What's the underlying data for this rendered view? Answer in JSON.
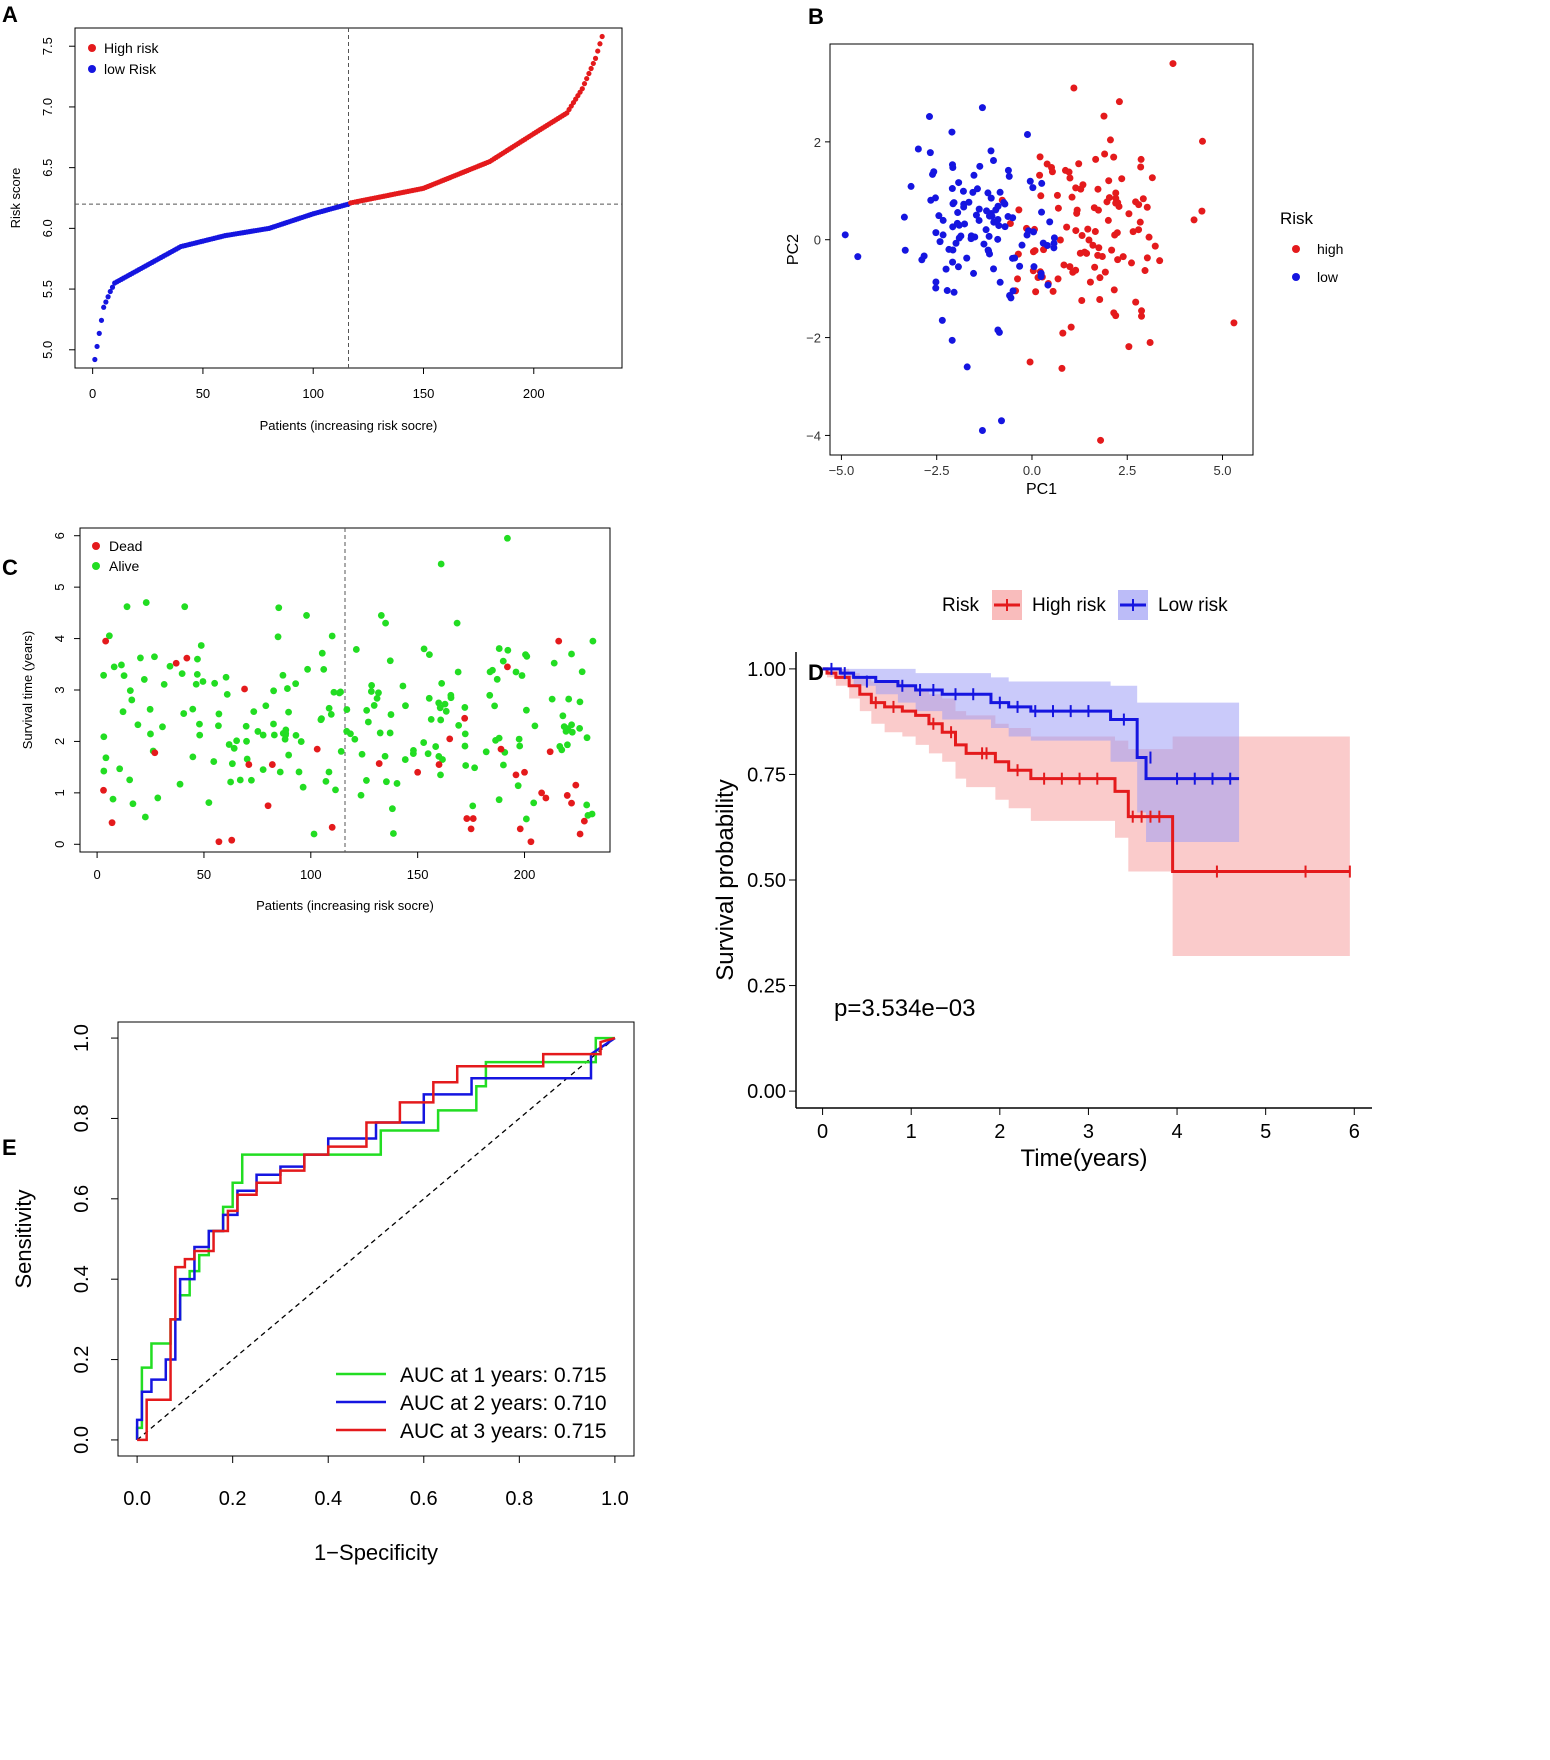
{
  "panel_labels": {
    "a": "A",
    "b": "B",
    "c": "C",
    "d": "D",
    "e": "E"
  },
  "colors": {
    "red": "#e41a1c",
    "blue": "#1515e0",
    "green": "#22dd22",
    "black": "#000000"
  },
  "chart_data": [
    {
      "id": "A",
      "type": "scatter",
      "title": "",
      "xlabel": "Patients (increasing risk socre)",
      "ylabel": "Risk score",
      "xlim": [
        -8,
        240
      ],
      "ylim": [
        4.85,
        7.65
      ],
      "xticks": [
        0,
        50,
        100,
        150,
        200
      ],
      "yticks": [
        5.0,
        5.5,
        6.0,
        6.5,
        7.0,
        7.5
      ],
      "n_patients": 231,
      "cutoff_index": 116,
      "cutoff_score": 6.2,
      "legend": [
        "High risk",
        "low Risk"
      ],
      "legend_position": "top-left",
      "series": [
        {
          "name": "low Risk",
          "color": "#1515e0",
          "profile": {
            "x": [
              1,
              5,
              8,
              10,
              20,
              40,
              60,
              80,
              100,
              116
            ],
            "y": [
              4.92,
              5.35,
              5.48,
              5.55,
              5.65,
              5.85,
              5.94,
              6.0,
              6.12,
              6.2
            ]
          }
        },
        {
          "name": "High risk",
          "color": "#e41a1c",
          "profile": {
            "x": [
              117,
              150,
              180,
              200,
              215,
              222,
              228,
              231
            ],
            "y": [
              6.21,
              6.33,
              6.55,
              6.78,
              6.95,
              7.15,
              7.4,
              7.58
            ]
          }
        }
      ]
    },
    {
      "id": "B",
      "type": "scatter",
      "xlabel": "PC1",
      "ylabel": "PC2",
      "xlim": [
        -5.3,
        5.8
      ],
      "ylim": [
        -4.4,
        4.0
      ],
      "xticks": [
        -5.0,
        -2.5,
        0.0,
        2.5,
        5.0
      ],
      "xtick_labels": [
        "−5.0",
        "−2.5",
        "0.0",
        "2.5",
        "5.0"
      ],
      "yticks": [
        -4,
        -2,
        0,
        2
      ],
      "ytick_labels": [
        "−4",
        "−2",
        "0",
        "2"
      ],
      "legend_title": "Risk",
      "legend": [
        "high",
        "low"
      ],
      "legend_position": "right",
      "series": [
        {
          "name": "high",
          "color": "#e41a1c",
          "center": [
            1.6,
            0.0
          ],
          "spread": [
            1.1,
            0.95
          ],
          "n": 115,
          "outliers": [
            [
              3.7,
              3.6
            ],
            [
              1.1,
              3.1
            ],
            [
              1.8,
              -4.1
            ],
            [
              5.3,
              -1.7
            ],
            [
              3.1,
              -2.1
            ],
            [
              -0.05,
              -2.5
            ]
          ]
        },
        {
          "name": "low",
          "color": "#1515e0",
          "center": [
            -1.4,
            0.2
          ],
          "spread": [
            0.9,
            0.9
          ],
          "n": 116,
          "outliers": [
            [
              -4.9,
              0.1
            ],
            [
              -1.3,
              -3.9
            ],
            [
              -0.8,
              -3.7
            ],
            [
              -1.7,
              -2.6
            ],
            [
              -1.3,
              2.7
            ],
            [
              -2.1,
              2.2
            ]
          ]
        }
      ]
    },
    {
      "id": "C",
      "type": "scatter",
      "xlabel": "Patients (increasing risk socre)",
      "ylabel": "Survival time (years)",
      "xlim": [
        -8,
        240
      ],
      "ylim": [
        -0.15,
        6.15
      ],
      "xticks": [
        0,
        50,
        100,
        150,
        200
      ],
      "yticks": [
        0,
        1,
        2,
        3,
        4,
        5,
        6
      ],
      "cutoff_index": 116,
      "legend": [
        "Dead",
        "Alive"
      ],
      "legend_position": "top-left",
      "series": [
        {
          "name": "Dead",
          "color": "#e41a1c",
          "points": [
            [
              3,
              1.05
            ],
            [
              4,
              3.95
            ],
            [
              7,
              0.42
            ],
            [
              27,
              1.78
            ],
            [
              37,
              3.52
            ],
            [
              42,
              3.62
            ],
            [
              57,
              0.05
            ],
            [
              63,
              0.08
            ],
            [
              69,
              3.02
            ],
            [
              71,
              1.55
            ],
            [
              80,
              0.75
            ],
            [
              82,
              1.55
            ],
            [
              103,
              1.85
            ],
            [
              110,
              0.33
            ],
            [
              132,
              1.57
            ],
            [
              150,
              1.4
            ],
            [
              160,
              1.55
            ],
            [
              165,
              2.05
            ],
            [
              172,
              2.45
            ],
            [
              173,
              0.5
            ],
            [
              175,
              0.3
            ],
            [
              176,
              0.5
            ],
            [
              189,
              1.85
            ],
            [
              192,
              3.45
            ],
            [
              196,
              1.35
            ],
            [
              198,
              0.3
            ],
            [
              200,
              1.4
            ],
            [
              203,
              0.05
            ],
            [
              208,
              1.0
            ],
            [
              210,
              0.9
            ],
            [
              212,
              1.8
            ],
            [
              216,
              3.95
            ],
            [
              220,
              0.95
            ],
            [
              222,
              0.8
            ],
            [
              224,
              1.15
            ],
            [
              226,
              0.2
            ],
            [
              228,
              0.45
            ]
          ]
        },
        {
          "name": "Alive",
          "color": "#22dd22",
          "n": 194,
          "extra_points": [
            [
              192,
              5.95
            ],
            [
              161,
              5.45
            ],
            [
              23,
              4.7
            ],
            [
              14,
              4.62
            ],
            [
              41,
              4.62
            ],
            [
              85,
              4.6
            ],
            [
              98,
              4.45
            ],
            [
              133,
              4.45
            ],
            [
              110,
              4.05
            ],
            [
              232,
              3.95
            ],
            [
              153,
              3.8
            ],
            [
              222,
              3.7
            ],
            [
              8,
              3.45
            ]
          ]
        }
      ]
    },
    {
      "id": "D",
      "type": "line",
      "title": "",
      "xlabel": "Time(years)",
      "ylabel": "Survival probability",
      "xlim": [
        -0.3,
        6.2
      ],
      "ylim": [
        -0.04,
        1.04
      ],
      "xticks": [
        0,
        1,
        2,
        3,
        4,
        5,
        6
      ],
      "yticks": [
        0.0,
        0.25,
        0.5,
        0.75,
        1.0
      ],
      "ytick_labels": [
        "0.00",
        "0.25",
        "0.50",
        "0.75",
        "1.00"
      ],
      "legend_title": "Risk",
      "legend": [
        "High risk",
        "Low risk"
      ],
      "legend_position": "top",
      "annotation": "p=3.534e−03",
      "series": [
        {
          "name": "High risk",
          "color": "#e41a1c",
          "band_color": "#f6a0a0",
          "x": [
            0,
            0.05,
            0.15,
            0.3,
            0.42,
            0.55,
            0.7,
            0.9,
            1.05,
            1.2,
            1.35,
            1.5,
            1.62,
            1.95,
            2.1,
            2.35,
            3.3,
            3.45,
            3.95,
            5.95
          ],
          "y": [
            1.0,
            0.99,
            0.98,
            0.96,
            0.94,
            0.92,
            0.91,
            0.9,
            0.89,
            0.87,
            0.85,
            0.82,
            0.8,
            0.78,
            0.76,
            0.74,
            0.71,
            0.65,
            0.52,
            0.52
          ],
          "lower": [
            1.0,
            0.98,
            0.96,
            0.93,
            0.9,
            0.87,
            0.85,
            0.84,
            0.82,
            0.8,
            0.78,
            0.74,
            0.72,
            0.69,
            0.67,
            0.64,
            0.6,
            0.52,
            0.32,
            0.32
          ],
          "upper": [
            1.0,
            1.0,
            1.0,
            0.99,
            0.98,
            0.97,
            0.97,
            0.96,
            0.95,
            0.94,
            0.93,
            0.9,
            0.89,
            0.87,
            0.86,
            0.84,
            0.83,
            0.81,
            0.84,
            0.84
          ],
          "censor": [
            [
              0.6,
              0.92
            ],
            [
              0.8,
              0.91
            ],
            [
              1.25,
              0.87
            ],
            [
              1.45,
              0.85
            ],
            [
              1.8,
              0.8
            ],
            [
              1.85,
              0.8
            ],
            [
              2.2,
              0.76
            ],
            [
              2.5,
              0.74
            ],
            [
              2.7,
              0.74
            ],
            [
              2.9,
              0.74
            ],
            [
              3.1,
              0.74
            ],
            [
              3.5,
              0.65
            ],
            [
              3.6,
              0.65
            ],
            [
              3.7,
              0.65
            ],
            [
              3.8,
              0.65
            ],
            [
              4.45,
              0.52
            ],
            [
              5.45,
              0.52
            ],
            [
              5.95,
              0.52
            ]
          ]
        },
        {
          "name": "Low risk",
          "color": "#1515e0",
          "band_color": "#9f9ff5",
          "x": [
            0,
            0.2,
            0.35,
            0.6,
            0.85,
            1.05,
            1.35,
            1.9,
            2.1,
            2.35,
            3.25,
            3.55,
            3.65,
            4.7
          ],
          "y": [
            1.0,
            0.99,
            0.98,
            0.97,
            0.96,
            0.95,
            0.94,
            0.92,
            0.91,
            0.9,
            0.88,
            0.79,
            0.74,
            0.74
          ],
          "lower": [
            1.0,
            0.98,
            0.96,
            0.94,
            0.92,
            0.9,
            0.88,
            0.86,
            0.84,
            0.83,
            0.78,
            0.66,
            0.59,
            0.59
          ],
          "upper": [
            1.0,
            1.0,
            1.0,
            1.0,
            1.0,
            0.99,
            0.99,
            0.98,
            0.97,
            0.97,
            0.96,
            0.92,
            0.92,
            0.92
          ],
          "censor": [
            [
              0.1,
              1.0
            ],
            [
              0.25,
              0.99
            ],
            [
              0.5,
              0.97
            ],
            [
              0.9,
              0.96
            ],
            [
              1.1,
              0.95
            ],
            [
              1.25,
              0.95
            ],
            [
              1.5,
              0.94
            ],
            [
              1.7,
              0.94
            ],
            [
              2.0,
              0.92
            ],
            [
              2.2,
              0.91
            ],
            [
              2.4,
              0.9
            ],
            [
              2.6,
              0.9
            ],
            [
              2.8,
              0.9
            ],
            [
              3.0,
              0.9
            ],
            [
              3.4,
              0.88
            ],
            [
              3.7,
              0.79
            ],
            [
              4.0,
              0.74
            ],
            [
              4.2,
              0.74
            ],
            [
              4.4,
              0.74
            ],
            [
              4.6,
              0.74
            ]
          ]
        }
      ]
    },
    {
      "id": "E",
      "type": "line",
      "title": "",
      "xlabel": "1−Specificity",
      "ylabel": "Sensitivity",
      "xlim": [
        -0.04,
        1.04
      ],
      "ylim": [
        -0.04,
        1.04
      ],
      "xticks": [
        0.0,
        0.2,
        0.4,
        0.6,
        0.8,
        1.0
      ],
      "yticks": [
        0.0,
        0.2,
        0.4,
        0.6,
        0.8,
        1.0
      ],
      "legend": [
        "AUC at 1 years: 0.715",
        "AUC at 2 years: 0.710",
        "AUC at 3 years: 0.715"
      ],
      "legend_position": "bottom-right",
      "series": [
        {
          "name": "AUC at 1 years: 0.715",
          "color": "#22dd22",
          "x": [
            0,
            0.0,
            0.01,
            0.01,
            0.03,
            0.03,
            0.07,
            0.07,
            0.09,
            0.09,
            0.11,
            0.11,
            0.13,
            0.13,
            0.15,
            0.15,
            0.18,
            0.18,
            0.2,
            0.2,
            0.22,
            0.22,
            0.4,
            0.4,
            0.51,
            0.51,
            0.63,
            0.63,
            0.71,
            0.71,
            0.73,
            0.73,
            0.96,
            0.96,
            1.0
          ],
          "y": [
            0,
            0.03,
            0.03,
            0.18,
            0.18,
            0.24,
            0.24,
            0.3,
            0.3,
            0.36,
            0.36,
            0.42,
            0.42,
            0.46,
            0.46,
            0.52,
            0.52,
            0.58,
            0.58,
            0.64,
            0.64,
            0.71,
            0.71,
            0.71,
            0.71,
            0.77,
            0.77,
            0.82,
            0.82,
            0.88,
            0.88,
            0.94,
            0.94,
            1.0,
            1.0
          ]
        },
        {
          "name": "AUC at 2 years: 0.710",
          "color": "#1515e0",
          "x": [
            0,
            0.0,
            0.01,
            0.01,
            0.03,
            0.03,
            0.06,
            0.06,
            0.08,
            0.08,
            0.09,
            0.09,
            0.12,
            0.12,
            0.15,
            0.15,
            0.18,
            0.18,
            0.21,
            0.21,
            0.25,
            0.25,
            0.3,
            0.3,
            0.35,
            0.35,
            0.4,
            0.4,
            0.5,
            0.5,
            0.6,
            0.6,
            0.7,
            0.7,
            0.95,
            0.95,
            1.0
          ],
          "y": [
            0,
            0.05,
            0.05,
            0.12,
            0.12,
            0.15,
            0.15,
            0.2,
            0.2,
            0.3,
            0.3,
            0.4,
            0.4,
            0.48,
            0.48,
            0.52,
            0.52,
            0.56,
            0.56,
            0.62,
            0.62,
            0.66,
            0.66,
            0.68,
            0.68,
            0.71,
            0.71,
            0.75,
            0.75,
            0.79,
            0.79,
            0.86,
            0.86,
            0.9,
            0.9,
            0.96,
            1.0
          ]
        },
        {
          "name": "AUC at 3 years: 0.715",
          "color": "#e41a1c",
          "x": [
            0,
            0.0,
            0.02,
            0.02,
            0.07,
            0.07,
            0.08,
            0.08,
            0.1,
            0.1,
            0.12,
            0.12,
            0.16,
            0.16,
            0.19,
            0.19,
            0.21,
            0.21,
            0.25,
            0.25,
            0.3,
            0.3,
            0.35,
            0.35,
            0.4,
            0.4,
            0.48,
            0.48,
            0.55,
            0.55,
            0.62,
            0.62,
            0.67,
            0.67,
            0.85,
            0.85,
            0.97,
            0.97,
            1.0
          ],
          "y": [
            0,
            0.0,
            0.0,
            0.1,
            0.1,
            0.3,
            0.3,
            0.43,
            0.43,
            0.45,
            0.45,
            0.47,
            0.47,
            0.52,
            0.52,
            0.57,
            0.57,
            0.61,
            0.61,
            0.64,
            0.64,
            0.67,
            0.67,
            0.71,
            0.71,
            0.73,
            0.73,
            0.79,
            0.79,
            0.84,
            0.84,
            0.89,
            0.89,
            0.93,
            0.93,
            0.96,
            0.96,
            0.99,
            1.0
          ]
        }
      ]
    }
  ]
}
